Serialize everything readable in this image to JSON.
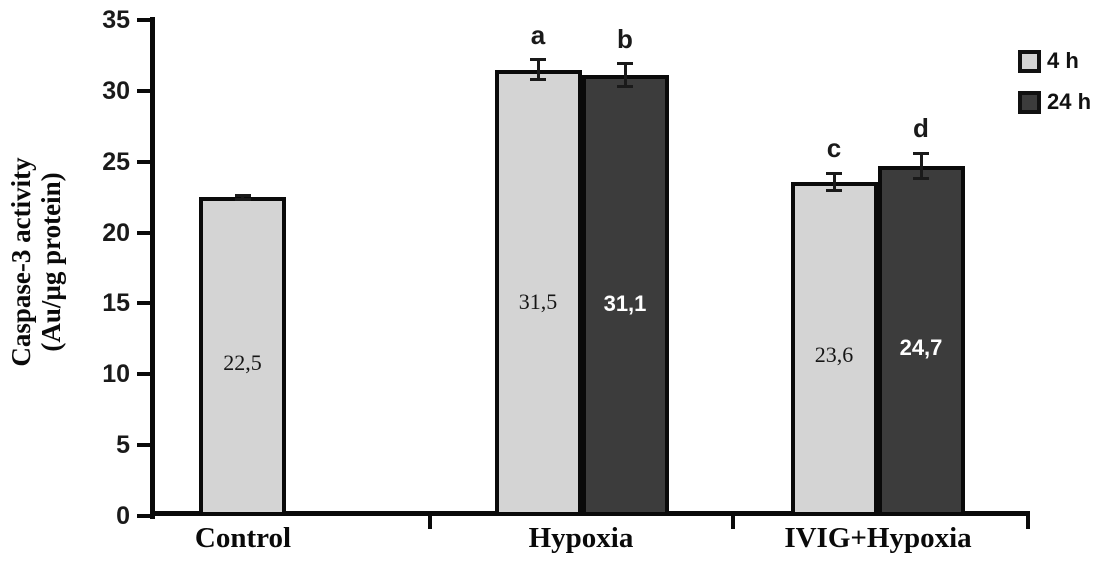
{
  "chart_data": {
    "type": "bar",
    "title": "",
    "ylabel_line1": "Caspase-3 activity",
    "ylabel_line2": "(Au/µg protein)",
    "xlabel": "",
    "categories": [
      "Control",
      "Hypoxia",
      "IVIG+Hypoxia"
    ],
    "series": [
      {
        "name": "4 h",
        "color": "#d4d4d4",
        "values": [
          22.5,
          31.5,
          23.6
        ],
        "value_labels": [
          "22,5",
          "31,5",
          "23,6"
        ],
        "errors": [
          0.15,
          0.7,
          0.6
        ],
        "letters": [
          "",
          "a",
          "c"
        ]
      },
      {
        "name": "24 h",
        "color": "#3c3c3c",
        "values": [
          null,
          31.1,
          24.7
        ],
        "value_labels": [
          "",
          "31,1",
          "24,7"
        ],
        "errors": [
          null,
          0.8,
          0.9
        ],
        "letters": [
          "",
          "b",
          "d"
        ]
      }
    ],
    "ylim": [
      0,
      35
    ],
    "yticks": [
      0,
      5,
      10,
      15,
      20,
      25,
      30,
      35
    ],
    "grid": false,
    "legend_position": "top-right",
    "axis_color": "#0a0a0a",
    "bar_border_color": "#0a0a0a"
  }
}
